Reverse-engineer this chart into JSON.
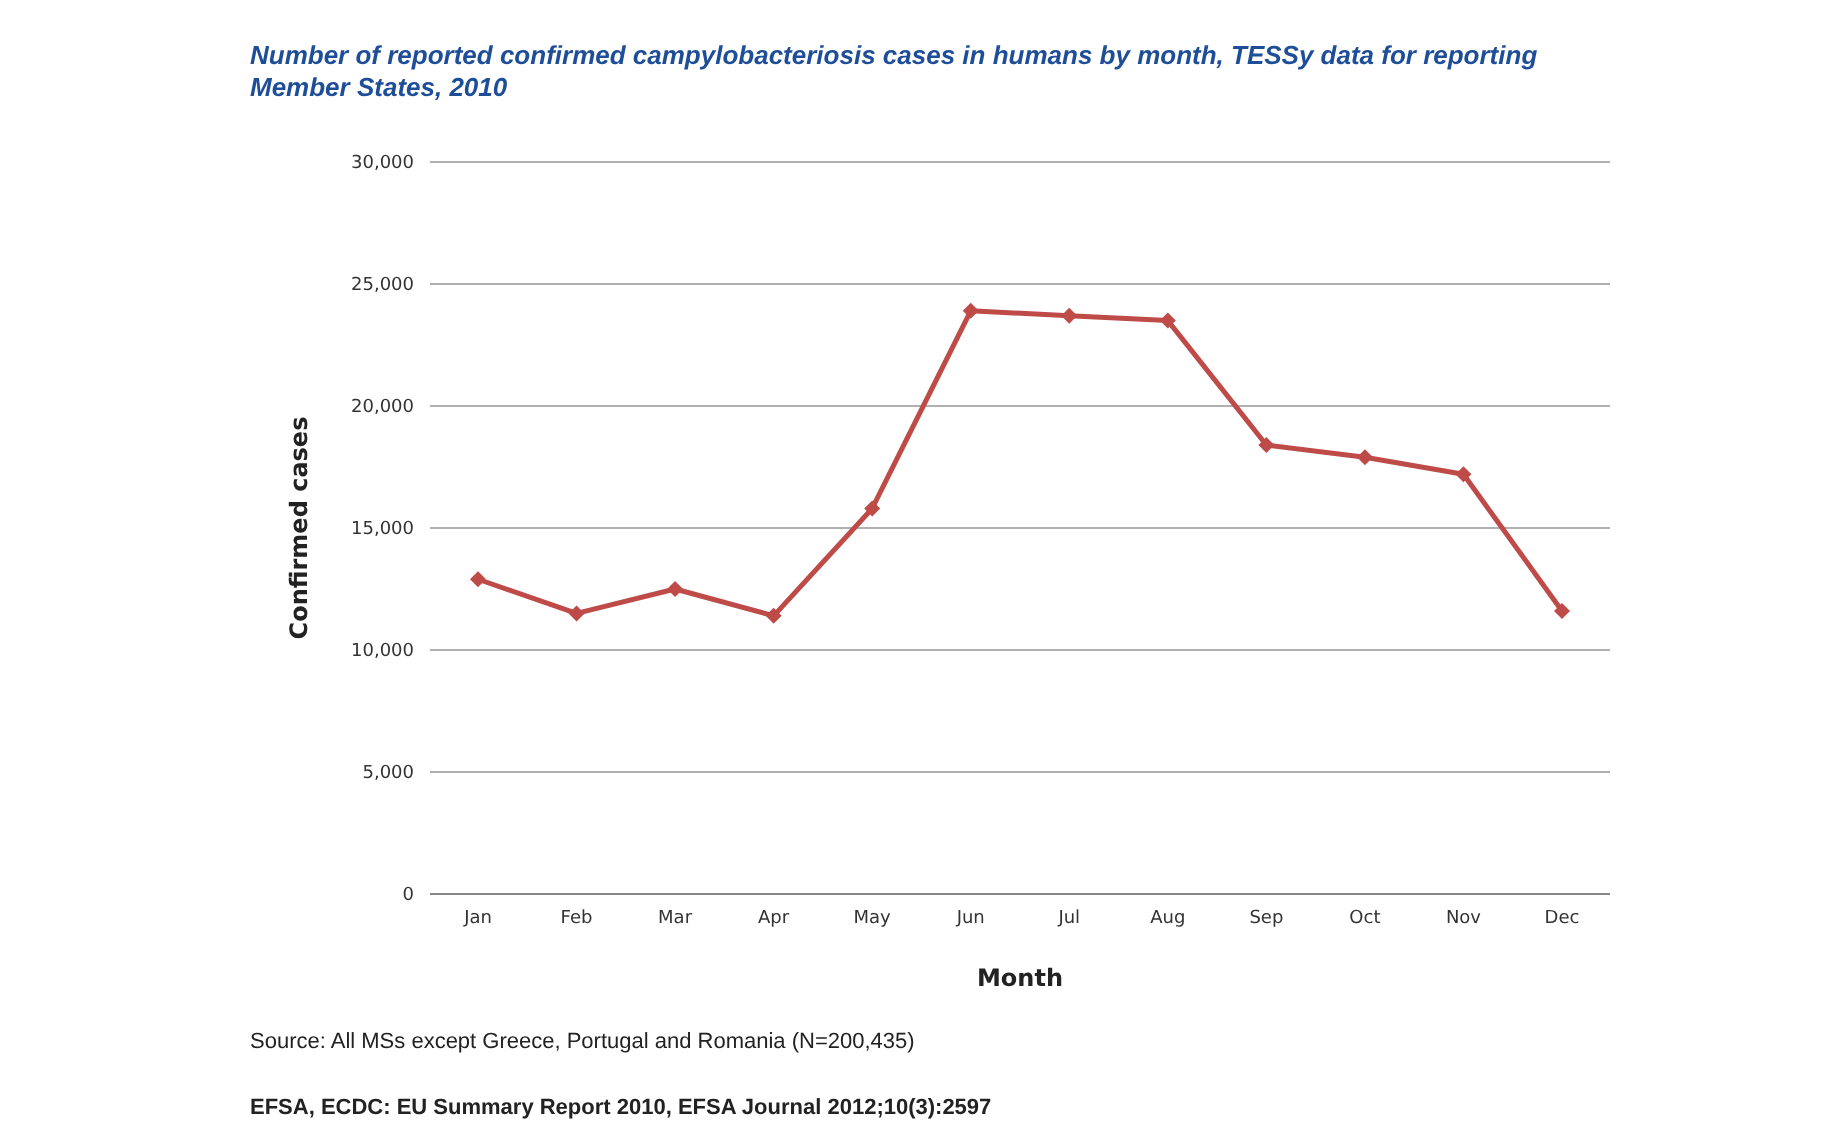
{
  "chart_data": {
    "type": "line",
    "title": "Number of reported confirmed campylobacteriosis cases in humans by month, TESSy data for reporting Member States, 2010",
    "xlabel": "Month",
    "ylabel": "Confirmed cases",
    "categories": [
      "Jan",
      "Feb",
      "Mar",
      "Apr",
      "May",
      "Jun",
      "Jul",
      "Aug",
      "Sep",
      "Oct",
      "Nov",
      "Dec"
    ],
    "series": [
      {
        "color": "#be4b48",
        "values": [
          12900,
          11500,
          12500,
          11400,
          15800,
          23900,
          23700,
          23500,
          18400,
          17900,
          17200,
          11600
        ]
      }
    ],
    "ylim": [
      0,
      30000
    ],
    "yticks": [
      {
        "value": 0,
        "label": "0"
      },
      {
        "value": 5000,
        "label": "5,000"
      },
      {
        "value": 10000,
        "label": "10,000"
      },
      {
        "value": 15000,
        "label": "15,000"
      },
      {
        "value": 20000,
        "label": "20,000"
      },
      {
        "value": 25000,
        "label": "25,000"
      },
      {
        "value": 30000,
        "label": "30,000"
      }
    ],
    "grid": "y",
    "marker": "diamond",
    "line_style": "solid",
    "annotations": [
      "Source: All MSs except Greece, Portugal and Romania (N=200,435)",
      "EFSA, ECDC: EU Summary Report 2010, EFSA Journal 2012;10(3):2597"
    ]
  }
}
